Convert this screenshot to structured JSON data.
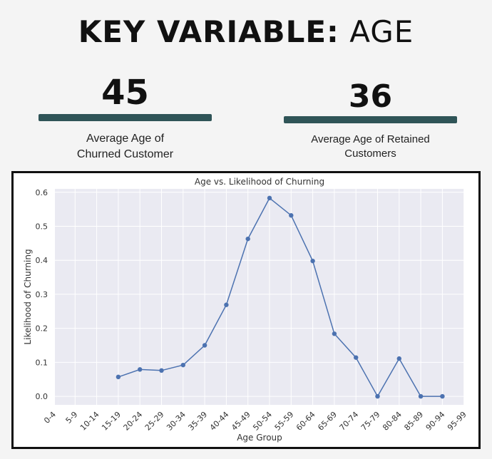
{
  "header": {
    "title_bold": "KEY VARIABLE:",
    "title_light": "AGE"
  },
  "stats": [
    {
      "value": "45",
      "label_line1": "Average Age of",
      "label_line2": "Churned Customer"
    },
    {
      "value": "36",
      "label_line1": "Average Age of Retained",
      "label_line2": "Customers"
    }
  ],
  "colors": {
    "stat_bar": "#2f5457",
    "line": "#4c72b0",
    "plot_bg": "#eaeaf2"
  },
  "chart_data": {
    "type": "line",
    "title": "Age vs. Likelihood of Churning",
    "xlabel": "Age Group",
    "ylabel": "Likelihood of Churning",
    "categories": [
      "0-4",
      "5-9",
      "10-14",
      "15-19",
      "20-24",
      "25-29",
      "30-34",
      "35-39",
      "40-44",
      "45-49",
      "50-54",
      "55-59",
      "60-64",
      "65-69",
      "70-74",
      "75-79",
      "80-84",
      "85-89",
      "90-94",
      "95-99"
    ],
    "values": [
      null,
      null,
      null,
      0.057,
      0.079,
      0.076,
      0.092,
      0.15,
      0.269,
      0.463,
      0.583,
      0.532,
      0.398,
      0.184,
      0.114,
      0.0,
      0.111,
      0.0,
      0.0,
      null
    ],
    "yticks": [
      "0.0",
      "0.1",
      "0.2",
      "0.3",
      "0.4",
      "0.5",
      "0.6"
    ],
    "ylim": [
      -0.025,
      0.61
    ],
    "grid": true
  }
}
